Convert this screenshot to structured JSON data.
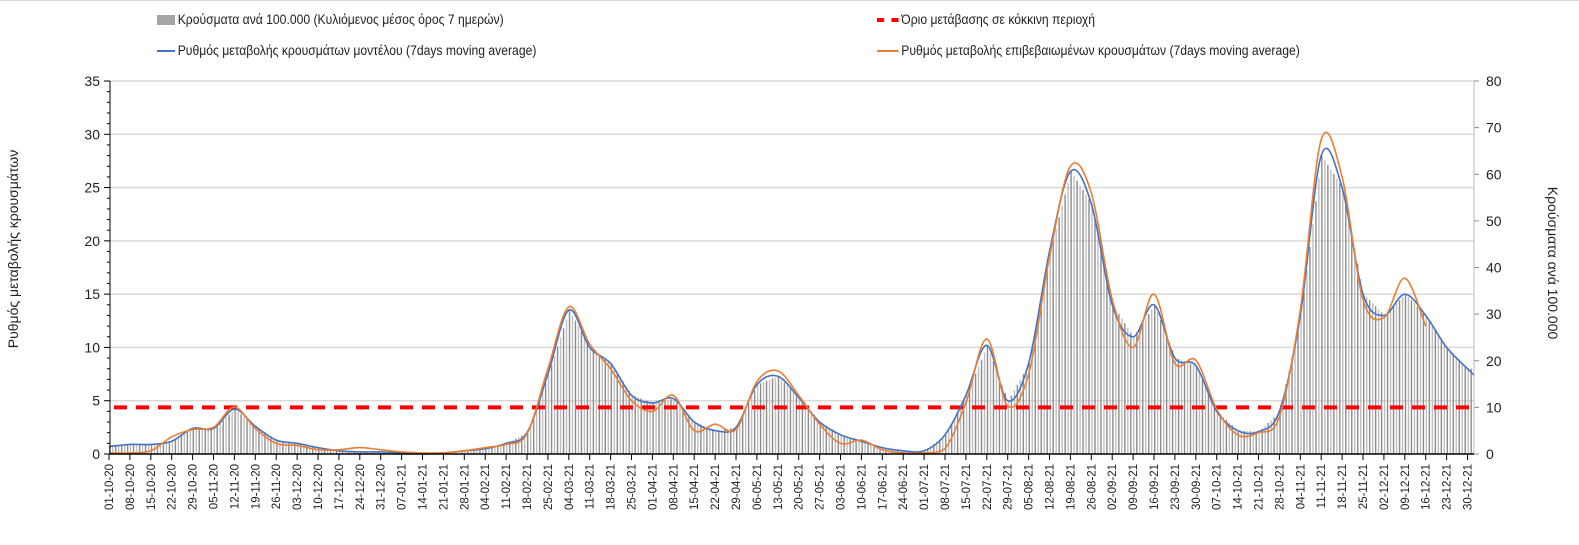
{
  "chart_data": {
    "type": "bar+line",
    "legend": {
      "bars": "Κρούσματα ανά 100.000 (Κυλιόμενος μέσος όρος 7 ημερών)",
      "threshold": "Όριο μετάβασης σε κόκκινη περιοχή",
      "model": "Ρυθμός μεταβολής κρουσμάτων μοντέλου (7days moving average)",
      "confirmed": "Ρυθμός μεταβολής επιβεβαιωμένων κρουσμάτων (7days moving average)"
    },
    "legend_placement": "top",
    "ylabel_left": "Ρυθμός μεταβολής κρουσμάτων",
    "ylabel_right": "Κρούσματα ανά 100.000",
    "ylim_left": [
      0,
      35
    ],
    "ylim_right": [
      0,
      80
    ],
    "yticks_left": [
      "0",
      "5",
      "10",
      "15",
      "20",
      "25",
      "30",
      "35"
    ],
    "yticks_right": [
      "0",
      "10",
      "20",
      "30",
      "40",
      "50",
      "60",
      "70",
      "80"
    ],
    "grid": true,
    "threshold_right_axis": 10,
    "colors": {
      "bars": "#a6a6a6",
      "threshold": "#ff0000",
      "model": "#4472c4",
      "confirmed": "#ed7d31"
    },
    "categories": [
      "01-10-20",
      "08-10-20",
      "15-10-20",
      "22-10-20",
      "29-10-20",
      "05-11-20",
      "12-11-20",
      "19-11-20",
      "26-11-20",
      "03-12-20",
      "10-12-20",
      "17-12-20",
      "24-12-20",
      "31-12-20",
      "07-01-21",
      "14-01-21",
      "21-01-21",
      "28-01-21",
      "04-02-21",
      "11-02-21",
      "18-02-21",
      "25-02-21",
      "04-03-21",
      "11-03-21",
      "18-03-21",
      "25-03-21",
      "01-04-21",
      "08-04-21",
      "15-04-21",
      "22-04-21",
      "29-04-21",
      "06-05-21",
      "13-05-21",
      "20-05-21",
      "27-05-21",
      "03-06-21",
      "10-06-21",
      "17-06-21",
      "24-06-21",
      "01-07-21",
      "08-07-21",
      "15-07-21",
      "22-07-21",
      "29-07-21",
      "05-08-21",
      "12-08-21",
      "19-08-21",
      "26-08-21",
      "02-09-21",
      "09-09-21",
      "16-09-21",
      "23-09-21",
      "30-09-21",
      "07-10-21",
      "14-10-21",
      "21-10-21",
      "28-10-21",
      "04-11-21",
      "11-11-21",
      "18-11-21",
      "25-11-21",
      "02-12-21",
      "09-12-21",
      "16-12-21",
      "23-12-21",
      "30-12-21"
    ],
    "series": [
      {
        "name": "model",
        "axis": "left",
        "values": [
          0.7,
          0.9,
          0.9,
          1.2,
          2.4,
          2.4,
          4.2,
          2.6,
          1.3,
          1.0,
          0.6,
          0.3,
          0.2,
          0.2,
          0.1,
          0.0,
          0.1,
          0.3,
          0.5,
          1.0,
          2.0,
          7.5,
          13.5,
          10.0,
          8.5,
          5.5,
          4.8,
          5.2,
          3.0,
          2.2,
          2.5,
          6.5,
          7.3,
          5.3,
          3.0,
          1.8,
          1.2,
          0.6,
          0.3,
          0.3,
          1.8,
          5.5,
          10.2,
          5.0,
          8.5,
          19.0,
          26.5,
          23.5,
          14.0,
          11.0,
          14.0,
          9.0,
          8.3,
          4.0,
          2.2,
          2.1,
          4.0,
          13.0,
          28.0,
          25.0,
          15.0,
          13.0,
          15.0,
          13.0,
          10.0,
          8.0
        ]
      },
      {
        "name": "confirmed",
        "axis": "left",
        "values": [
          0.1,
          0.1,
          0.3,
          1.6,
          2.3,
          2.5,
          4.4,
          2.4,
          1.0,
          0.8,
          0.4,
          0.4,
          0.6,
          0.4,
          0.2,
          0.1,
          0.1,
          0.3,
          0.6,
          0.9,
          1.9,
          8.0,
          13.8,
          10.3,
          8.0,
          5.0,
          4.0,
          5.5,
          2.2,
          2.8,
          2.3,
          6.8,
          7.8,
          5.5,
          2.8,
          1.0,
          1.3,
          0.4,
          0.1,
          0.1,
          0.5,
          4.8,
          10.8,
          4.5,
          7.5,
          18.5,
          27.0,
          24.5,
          14.5,
          10.0,
          15.0,
          8.5,
          8.8,
          4.2,
          1.8,
          2.0,
          3.5,
          13.5,
          29.5,
          26.0,
          14.5,
          12.8,
          16.5,
          12.0,
          null,
          null
        ]
      },
      {
        "name": "bars",
        "axis": "right",
        "values": [
          1.6,
          2.1,
          2.1,
          2.7,
          5.5,
          5.5,
          9.6,
          5.9,
          3.0,
          2.3,
          1.4,
          0.7,
          0.5,
          0.5,
          0.2,
          0.1,
          0.2,
          0.7,
          1.1,
          2.3,
          4.6,
          17.1,
          30.9,
          22.9,
          19.4,
          12.6,
          11.0,
          11.9,
          6.9,
          5.0,
          5.7,
          14.9,
          16.7,
          12.1,
          6.9,
          4.1,
          2.7,
          1.4,
          0.7,
          0.7,
          4.1,
          12.6,
          23.3,
          11.4,
          19.4,
          43.4,
          60.6,
          53.7,
          32.0,
          25.1,
          32.0,
          20.6,
          19.0,
          9.1,
          5.0,
          4.8,
          9.1,
          29.7,
          64.0,
          57.1,
          34.3,
          29.7,
          34.3,
          29.7,
          22.9,
          18.3
        ]
      }
    ]
  }
}
